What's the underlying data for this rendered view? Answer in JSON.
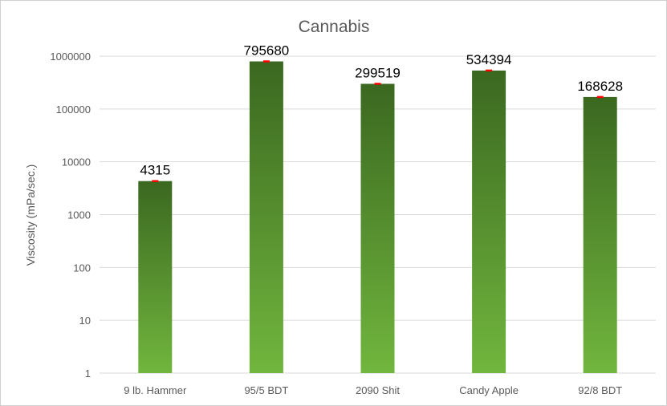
{
  "chart_data": {
    "type": "bar",
    "title": "Cannabis",
    "xlabel": "",
    "ylabel": "Viscosity (mPa/sec.)",
    "yscale": "log",
    "ylim": [
      1,
      1000000
    ],
    "yticks": [
      "1",
      "10",
      "100",
      "1000",
      "10000",
      "100000",
      "1000000"
    ],
    "grid": true,
    "legend": "none",
    "categories": [
      "9 lb. Hammer",
      "95/5 BDT",
      "2090 Shit",
      "Candy Apple",
      "92/8 BDT"
    ],
    "values": [
      4315,
      795680,
      299519,
      534394,
      168628
    ],
    "data_labels": [
      "4315",
      "795680",
      "299519",
      "534394",
      "168628"
    ],
    "error_bars": true,
    "colors": {
      "bar_top": "#3b6820",
      "bar_bottom": "#71b63e",
      "error_bar": "#ff0000",
      "grid": "#d9d9d9"
    }
  }
}
